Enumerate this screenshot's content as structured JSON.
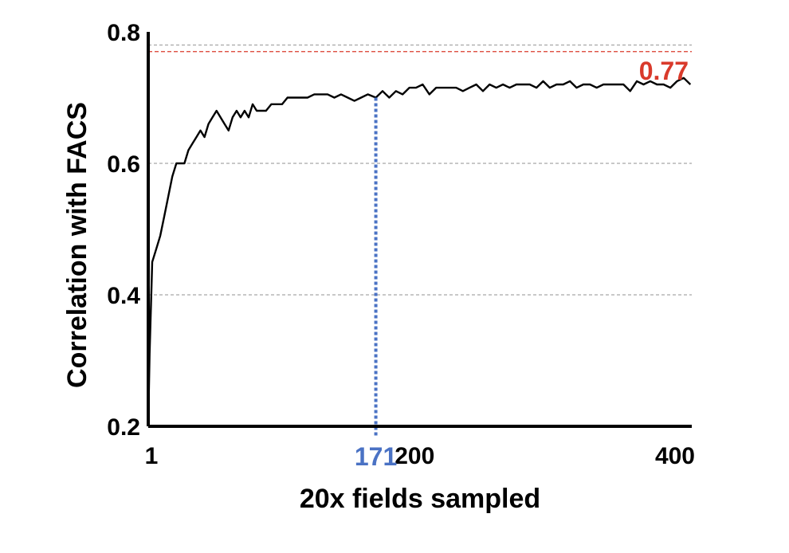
{
  "chart_data": {
    "type": "line",
    "title": "",
    "xlabel": "20x fields sampled",
    "ylabel": "Correlation with FACS",
    "xlim": [
      1,
      407
    ],
    "ylim": [
      0.2,
      0.8
    ],
    "x_ticks": [
      {
        "value": 1,
        "label": "1"
      },
      {
        "value": 200,
        "label": "200"
      },
      {
        "value": 400,
        "label": "400"
      }
    ],
    "y_ticks": [
      {
        "value": 0.2,
        "label": "0.2"
      },
      {
        "value": 0.4,
        "label": "0.4"
      },
      {
        "value": 0.6,
        "label": "0.6"
      },
      {
        "value": 0.8,
        "label": "0.8"
      }
    ],
    "grid": "dashed horizontal lines at 0.4, 0.6 and 0.78",
    "colors": {
      "line": "#000000",
      "reference": "#d93a2b",
      "marker": "#4a72c4",
      "grid": "#a6a6a6"
    },
    "reference_line": {
      "value": 0.77,
      "label": "0.77",
      "color": "#d93a2b"
    },
    "marker": {
      "x": 171,
      "label": "171",
      "color": "#4a72c4"
    },
    "series": [
      {
        "values": [
          [
            1,
            0.2
          ],
          [
            2,
            0.31
          ],
          [
            4,
            0.45
          ],
          [
            7,
            0.47
          ],
          [
            10,
            0.49
          ],
          [
            13,
            0.52
          ],
          [
            16,
            0.55
          ],
          [
            19,
            0.58
          ],
          [
            22,
            0.6
          ],
          [
            25,
            0.6
          ],
          [
            28,
            0.6
          ],
          [
            31,
            0.62
          ],
          [
            34,
            0.63
          ],
          [
            37,
            0.64
          ],
          [
            40,
            0.65
          ],
          [
            43,
            0.64
          ],
          [
            46,
            0.66
          ],
          [
            49,
            0.67
          ],
          [
            52,
            0.68
          ],
          [
            55,
            0.67
          ],
          [
            58,
            0.66
          ],
          [
            61,
            0.65
          ],
          [
            64,
            0.67
          ],
          [
            67,
            0.68
          ],
          [
            70,
            0.67
          ],
          [
            73,
            0.68
          ],
          [
            76,
            0.67
          ],
          [
            79,
            0.69
          ],
          [
            82,
            0.68
          ],
          [
            85,
            0.68
          ],
          [
            89,
            0.68
          ],
          [
            93,
            0.69
          ],
          [
            97,
            0.69
          ],
          [
            101,
            0.69
          ],
          [
            105,
            0.7
          ],
          [
            110,
            0.7
          ],
          [
            115,
            0.7
          ],
          [
            120,
            0.7
          ],
          [
            125,
            0.705
          ],
          [
            130,
            0.705
          ],
          [
            135,
            0.705
          ],
          [
            140,
            0.7
          ],
          [
            145,
            0.705
          ],
          [
            150,
            0.7
          ],
          [
            155,
            0.695
          ],
          [
            160,
            0.7
          ],
          [
            165,
            0.705
          ],
          [
            171,
            0.7
          ],
          [
            176,
            0.71
          ],
          [
            181,
            0.7
          ],
          [
            186,
            0.71
          ],
          [
            191,
            0.705
          ],
          [
            196,
            0.715
          ],
          [
            201,
            0.715
          ],
          [
            206,
            0.72
          ],
          [
            211,
            0.705
          ],
          [
            216,
            0.715
          ],
          [
            221,
            0.715
          ],
          [
            226,
            0.715
          ],
          [
            231,
            0.715
          ],
          [
            236,
            0.71
          ],
          [
            241,
            0.715
          ],
          [
            246,
            0.72
          ],
          [
            251,
            0.71
          ],
          [
            256,
            0.72
          ],
          [
            261,
            0.715
          ],
          [
            266,
            0.72
          ],
          [
            271,
            0.715
          ],
          [
            276,
            0.72
          ],
          [
            281,
            0.72
          ],
          [
            286,
            0.72
          ],
          [
            291,
            0.715
          ],
          [
            296,
            0.725
          ],
          [
            301,
            0.715
          ],
          [
            306,
            0.72
          ],
          [
            311,
            0.72
          ],
          [
            316,
            0.725
          ],
          [
            321,
            0.715
          ],
          [
            326,
            0.72
          ],
          [
            331,
            0.72
          ],
          [
            336,
            0.715
          ],
          [
            341,
            0.72
          ],
          [
            346,
            0.72
          ],
          [
            351,
            0.72
          ],
          [
            356,
            0.72
          ],
          [
            361,
            0.71
          ],
          [
            366,
            0.725
          ],
          [
            371,
            0.72
          ],
          [
            376,
            0.725
          ],
          [
            381,
            0.72
          ],
          [
            386,
            0.72
          ],
          [
            391,
            0.715
          ],
          [
            396,
            0.725
          ],
          [
            401,
            0.73
          ],
          [
            406,
            0.72
          ]
        ]
      }
    ]
  }
}
